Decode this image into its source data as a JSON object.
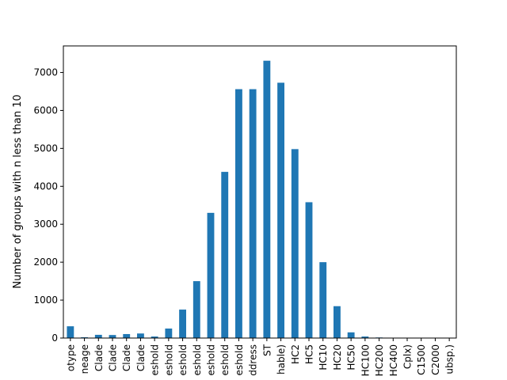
{
  "chart_data": {
    "type": "bar",
    "title": "",
    "xlabel": "",
    "ylabel": "Number of groups with n less than 10",
    "ylim": [
      0,
      7700
    ],
    "yticks": [
      0,
      1000,
      2000,
      3000,
      4000,
      5000,
      6000,
      7000
    ],
    "ytick_labels": [
      "0",
      "1000",
      "2000",
      "3000",
      "4000",
      "5000",
      "6000",
      "7000"
    ],
    "grid": false,
    "legend": "none",
    "bar_color": "#1f77b4",
    "categories": [
      "otype",
      "neage",
      "Clade",
      "Clade",
      "Clade",
      "Clade",
      "eshold",
      "eshold",
      "eshold",
      "eshold",
      "eshold",
      "eshold",
      "eshold",
      "ddress",
      "ST",
      "hable)",
      "HC2",
      "HC5",
      "HC10",
      "HC20",
      "HC50",
      "HC100",
      "HC200",
      "HC400",
      "Cplx)",
      "C1500",
      "C2000",
      "ubsp.)"
    ],
    "values": [
      310,
      20,
      85,
      80,
      105,
      120,
      40,
      250,
      750,
      1500,
      3300,
      4380,
      6560,
      6560,
      7310,
      6730,
      4980,
      3580,
      2000,
      840,
      150,
      40,
      15,
      5,
      3,
      2,
      2,
      2
    ]
  }
}
